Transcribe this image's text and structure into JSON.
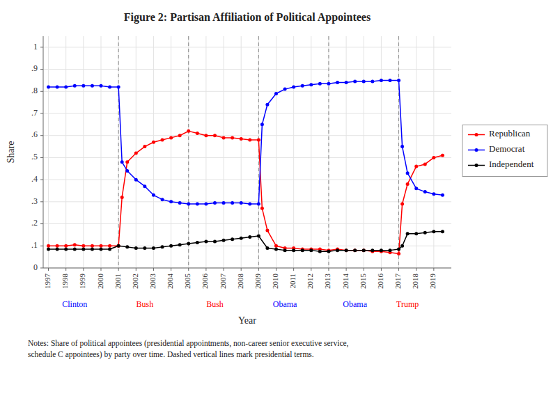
{
  "chart_data": {
    "type": "line",
    "title": "Figure 2:  Partisan Affiliation of Political Appointees",
    "x_label": "Year",
    "y_label": "Share",
    "notes": "Notes:  Share of political appointees (presidential appointments, non-career senior executive service,\nschedule C appointees) by party over time.  Dashed vertical lines mark presidential terms.",
    "vlines": [
      2001,
      2005,
      2009,
      2013,
      2017
    ],
    "annotations": [
      {
        "text": "Clinton",
        "x": 1998.5,
        "color": "blue"
      },
      {
        "text": "Bush",
        "x": 2002.5,
        "color": "red"
      },
      {
        "text": "Bush",
        "x": 2006.5,
        "color": "red"
      },
      {
        "text": "Obama",
        "x": 2010.5,
        "color": "blue"
      },
      {
        "text": "Obama",
        "x": 2014.5,
        "color": "blue"
      },
      {
        "text": "Trump",
        "x": 2017.5,
        "color": "red"
      }
    ],
    "series": [
      {
        "name": "Republican",
        "color": "red",
        "marker": "circle",
        "x": [
          1997,
          1997.5,
          1998,
          1998.5,
          1999,
          1999.5,
          2000,
          2000.5,
          2001,
          2001.2,
          2001.5,
          2002,
          2002.5,
          2003,
          2003.5,
          2004,
          2004.5,
          2005,
          2005.5,
          2006,
          2006.5,
          2007,
          2007.5,
          2008,
          2008.5,
          2009,
          2009.2,
          2009.5,
          2010,
          2010.5,
          2011,
          2011.5,
          2012,
          2012.5,
          2013,
          2013.5,
          2014,
          2014.5,
          2015,
          2015.5,
          2016,
          2016.5,
          2017,
          2017.2,
          2017.5,
          2018,
          2018.5,
          2019,
          2019.5
        ],
        "values": [
          0.1,
          0.1,
          0.1,
          0.105,
          0.1,
          0.1,
          0.1,
          0.1,
          0.1,
          0.32,
          0.48,
          0.52,
          0.55,
          0.57,
          0.58,
          0.59,
          0.6,
          0.62,
          0.61,
          0.6,
          0.6,
          0.59,
          0.59,
          0.585,
          0.58,
          0.58,
          0.27,
          0.17,
          0.1,
          0.09,
          0.09,
          0.085,
          0.085,
          0.085,
          0.08,
          0.085,
          0.08,
          0.08,
          0.08,
          0.075,
          0.075,
          0.07,
          0.065,
          0.29,
          0.38,
          0.46,
          0.47,
          0.5,
          0.51
        ]
      },
      {
        "name": "Democrat",
        "color": "blue",
        "marker": "circle",
        "x": [
          1997,
          1997.5,
          1998,
          1998.5,
          1999,
          1999.5,
          2000,
          2000.5,
          2001,
          2001.2,
          2001.5,
          2002,
          2002.5,
          2003,
          2003.5,
          2004,
          2004.5,
          2005,
          2005.5,
          2006,
          2006.5,
          2007,
          2007.5,
          2008,
          2008.5,
          2009,
          2009.2,
          2009.5,
          2010,
          2010.5,
          2011,
          2011.5,
          2012,
          2012.5,
          2013,
          2013.5,
          2014,
          2014.5,
          2015,
          2015.5,
          2016,
          2016.5,
          2017,
          2017.2,
          2017.5,
          2018,
          2018.5,
          2019,
          2019.5
        ],
        "values": [
          0.82,
          0.82,
          0.82,
          0.825,
          0.825,
          0.825,
          0.825,
          0.82,
          0.82,
          0.48,
          0.44,
          0.4,
          0.37,
          0.33,
          0.31,
          0.3,
          0.295,
          0.29,
          0.29,
          0.29,
          0.295,
          0.295,
          0.295,
          0.295,
          0.29,
          0.29,
          0.65,
          0.74,
          0.79,
          0.81,
          0.82,
          0.825,
          0.83,
          0.835,
          0.835,
          0.84,
          0.84,
          0.845,
          0.845,
          0.845,
          0.85,
          0.85,
          0.85,
          0.55,
          0.43,
          0.36,
          0.345,
          0.335,
          0.33
        ]
      },
      {
        "name": "Independent",
        "color": "black",
        "marker": "circle",
        "x": [
          1997,
          1997.5,
          1998,
          1998.5,
          1999,
          1999.5,
          2000,
          2000.5,
          2001,
          2001.5,
          2002,
          2002.5,
          2003,
          2003.5,
          2004,
          2004.5,
          2005,
          2005.5,
          2006,
          2006.5,
          2007,
          2007.5,
          2008,
          2008.5,
          2009,
          2009.5,
          2010,
          2010.5,
          2011,
          2011.5,
          2012,
          2012.5,
          2013,
          2013.5,
          2014,
          2014.5,
          2015,
          2015.5,
          2016,
          2016.5,
          2017,
          2017.2,
          2017.5,
          2018,
          2018.5,
          2019,
          2019.5
        ],
        "values": [
          0.085,
          0.085,
          0.085,
          0.085,
          0.085,
          0.085,
          0.085,
          0.085,
          0.1,
          0.095,
          0.09,
          0.09,
          0.09,
          0.095,
          0.1,
          0.105,
          0.11,
          0.115,
          0.12,
          0.12,
          0.125,
          0.13,
          0.135,
          0.14,
          0.145,
          0.09,
          0.085,
          0.08,
          0.08,
          0.08,
          0.08,
          0.075,
          0.075,
          0.08,
          0.08,
          0.08,
          0.08,
          0.08,
          0.08,
          0.08,
          0.085,
          0.1,
          0.155,
          0.155,
          0.16,
          0.165,
          0.165
        ]
      }
    ],
    "xlim": [
      1996.7,
      2020
    ],
    "xticks": [
      1997,
      1998,
      1999,
      2000,
      2001,
      2002,
      2003,
      2004,
      2005,
      2006,
      2007,
      2008,
      2009,
      2010,
      2011,
      2012,
      2013,
      2014,
      2015,
      2016,
      2017,
      2018,
      2019
    ],
    "ylim": [
      0,
      1.05
    ],
    "yticks": [
      0,
      {
        "value": 0.1,
        "label": ".1"
      },
      {
        "value": 0.2,
        "label": ".2"
      },
      {
        "value": 0.3,
        "label": ".3"
      },
      {
        "value": 0.4,
        "label": ".4"
      },
      {
        "value": 0.5,
        "label": ".5"
      },
      {
        "value": 0.6,
        "label": ".6"
      },
      {
        "value": 0.7,
        "label": ".7"
      },
      {
        "value": 0.8,
        "label": ".8"
      },
      {
        "value": 0.9,
        "label": ".9"
      },
      1
    ],
    "grid": true,
    "legend": "right"
  }
}
